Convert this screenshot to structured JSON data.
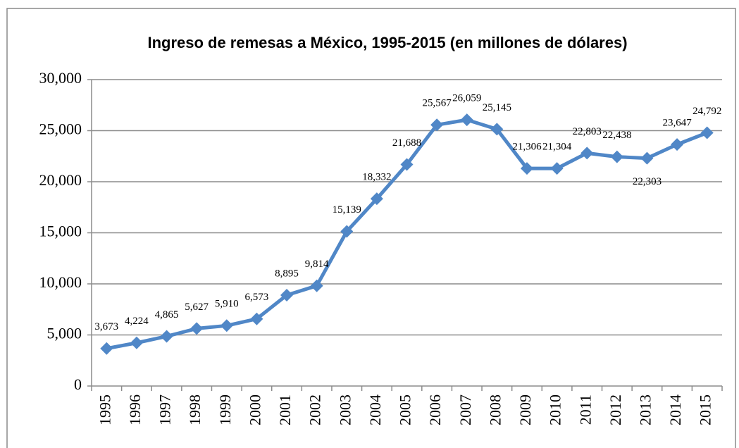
{
  "chart_data": {
    "type": "line",
    "title": "Ingreso de remesas a México, 1995-2015 (en millones de dólares)",
    "categories": [
      "1995",
      "1996",
      "1997",
      "1998",
      "1999",
      "2000",
      "2001",
      "2002",
      "2003",
      "2004",
      "2005",
      "2006",
      "2007",
      "2008",
      "2009",
      "2010",
      "2011",
      "2012",
      "2013",
      "2014",
      "2015"
    ],
    "series": [
      {
        "name": null,
        "color": "#5087c7",
        "values": [
          3673,
          4224,
          4865,
          5627,
          5910,
          6573,
          8895,
          9814,
          15139,
          18332,
          21688,
          25567,
          26059,
          25145,
          21306,
          21304,
          22803,
          22438,
          22303,
          23647,
          24792
        ],
        "value_labels": [
          "3,673",
          "4,224",
          "4,865",
          "5,627",
          "5,910",
          "6,573",
          "8,895",
          "9,814",
          "15,139",
          "18,332",
          "21,688",
          "25,567",
          "26,059",
          "25,145",
          "21,306",
          "21,304",
          "22,803",
          "22,438",
          "22,303",
          "23,647",
          "24,792"
        ]
      }
    ],
    "ylim": [
      0,
      30000
    ],
    "yticks": [
      0,
      {
        "value": 5000,
        "label": "5,000"
      },
      {
        "value": 10000,
        "label": "10,000"
      },
      {
        "value": 15000,
        "label": "15,000"
      },
      {
        "value": 20000,
        "label": "20,000"
      },
      {
        "value": 25000,
        "label": "25,000"
      },
      {
        "value": 30000,
        "label": "30,000"
      }
    ],
    "grid": true
  }
}
